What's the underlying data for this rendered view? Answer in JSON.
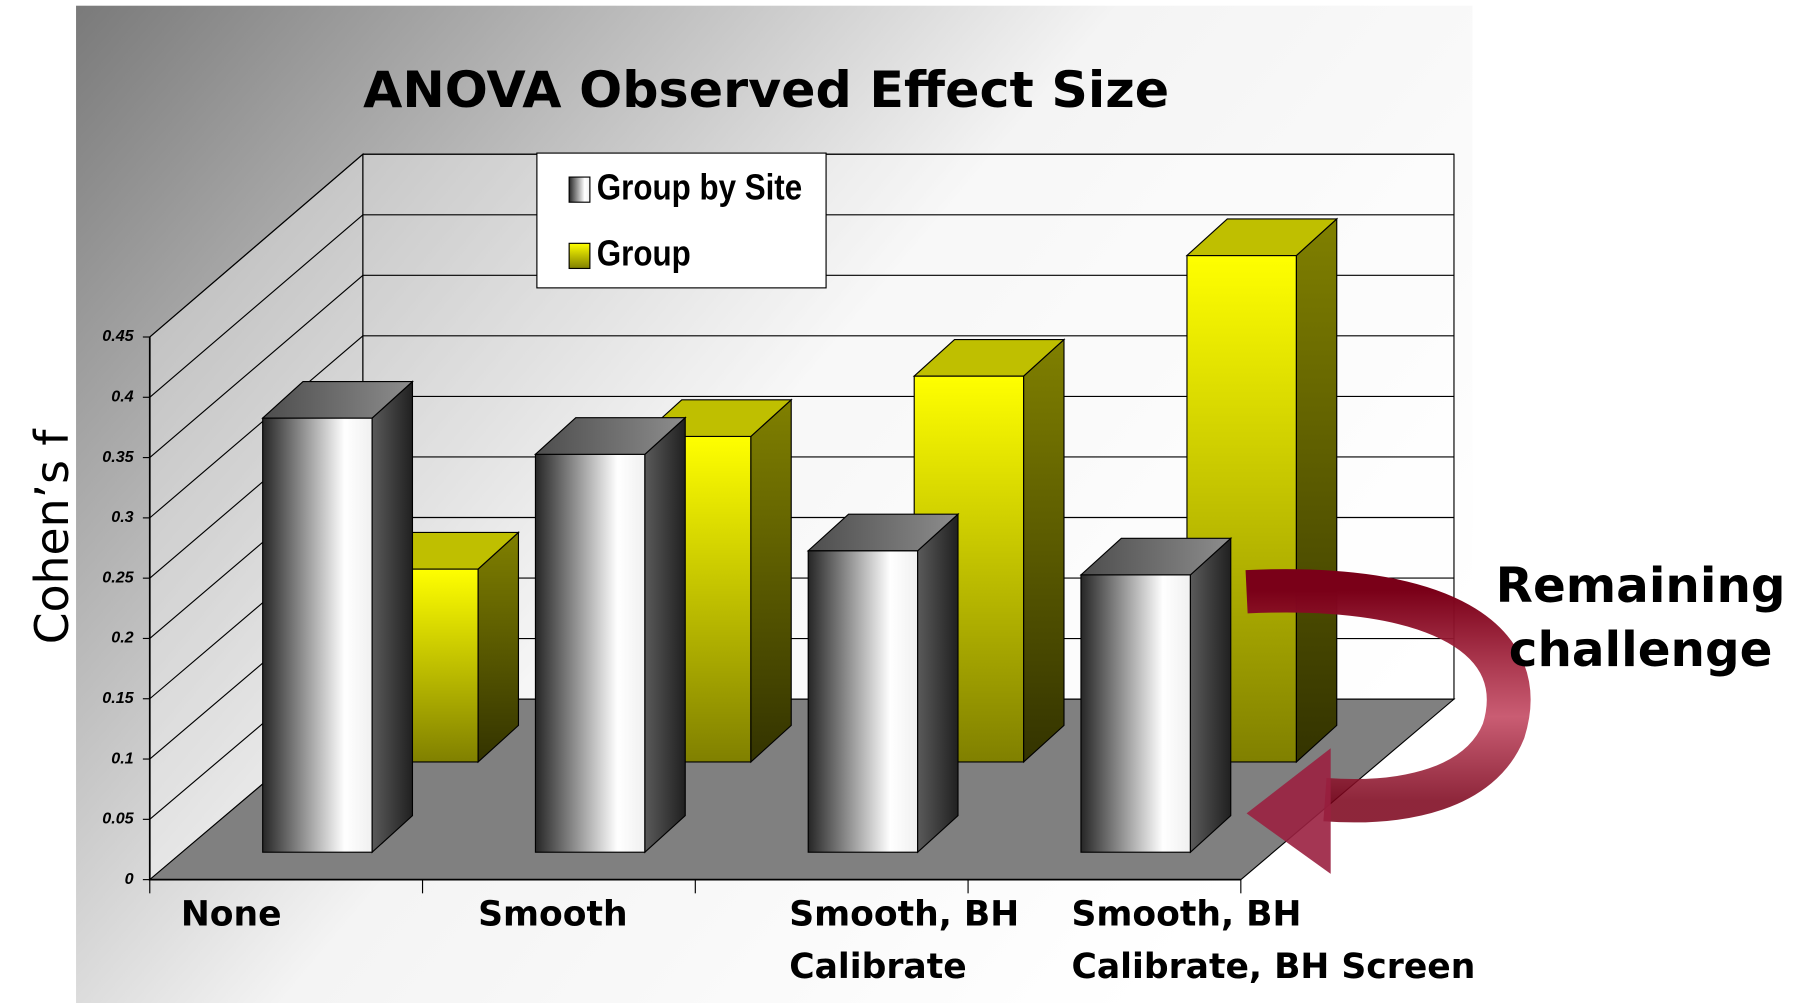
{
  "chart_data": {
    "type": "bar3d",
    "title": "ANOVA Observed Effect Size",
    "y_label": "Cohen’s f",
    "annotation": "Remaining\nchallenge",
    "categories": [
      "None",
      "Smooth",
      "Smooth, BH\nCalibrate",
      "Smooth, BH\nCalibrate, BH Screen"
    ],
    "series": [
      {
        "name": "Group by Site",
        "color": "#404040",
        "values": [
          0.36,
          0.33,
          0.25,
          0.23
        ]
      },
      {
        "name": "Group",
        "color": "#ffff00",
        "values": [
          0.16,
          0.27,
          0.32,
          0.42
        ]
      }
    ],
    "ylim": [
      0,
      0.45
    ],
    "yticks": [
      0,
      0.05,
      0.1,
      0.15,
      0.2,
      0.25,
      0.3,
      0.35,
      0.4,
      0.45
    ],
    "grid": true,
    "legend": "top"
  }
}
